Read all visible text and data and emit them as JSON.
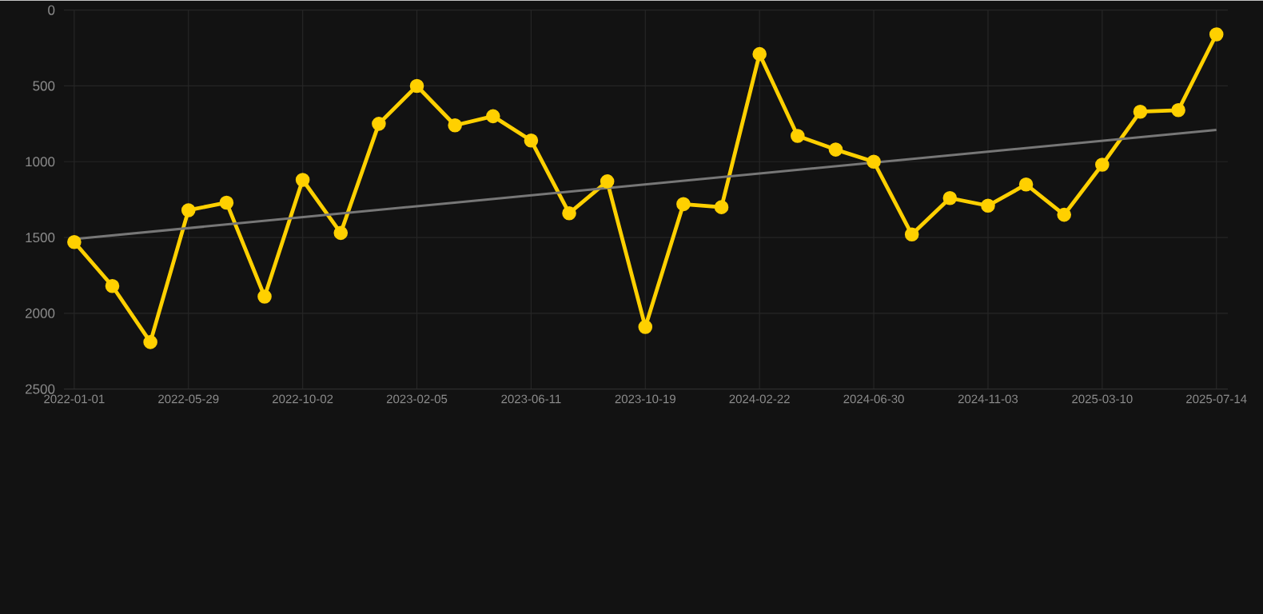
{
  "chart_data": {
    "type": "line",
    "categories": [
      "2022-01-01",
      null,
      null,
      "2022-05-29",
      null,
      null,
      "2022-10-02",
      null,
      null,
      "2023-02-05",
      null,
      null,
      "2023-06-11",
      null,
      null,
      "2023-10-19",
      null,
      null,
      "2024-02-22",
      null,
      null,
      "2024-06-30",
      null,
      null,
      "2024-11-03",
      null,
      null,
      "2025-03-10",
      null,
      null,
      "2025-07-14"
    ],
    "series": [
      {
        "color": "#ffd000",
        "marker": "circle",
        "values": [
          1530,
          1820,
          2190,
          1320,
          1270,
          1890,
          1120,
          1470,
          750,
          500,
          760,
          700,
          860,
          1340,
          1130,
          2090,
          1280,
          1300,
          290,
          830,
          920,
          1000,
          1480,
          1240,
          1290,
          1150,
          1350,
          1020,
          670,
          660,
          160
        ]
      },
      {
        "type": "line",
        "color": "#777777",
        "marker": "none",
        "values": [
          1510,
          null,
          null,
          null,
          null,
          null,
          null,
          null,
          null,
          null,
          null,
          null,
          null,
          null,
          null,
          null,
          null,
          null,
          null,
          null,
          null,
          null,
          null,
          null,
          null,
          null,
          null,
          null,
          null,
          null,
          790
        ]
      }
    ],
    "ylim": [
      2500,
      0
    ],
    "yticks": [
      0,
      500,
      1000,
      1500,
      2000,
      2500
    ],
    "grid": true
  }
}
